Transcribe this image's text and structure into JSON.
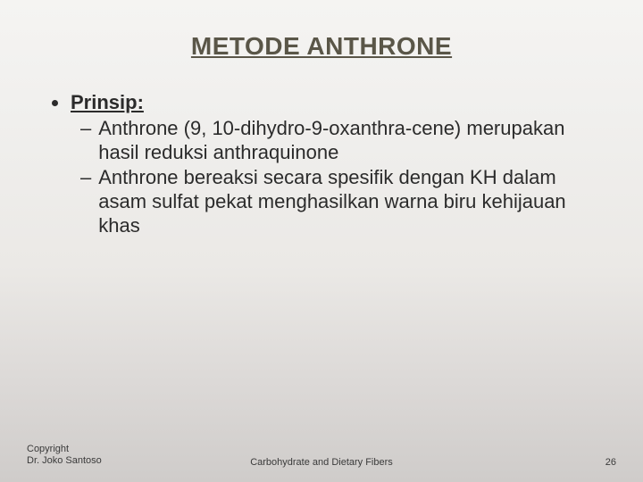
{
  "slide": {
    "title": "METODE ANTHRONE",
    "bullet_label": "Prinsip:",
    "subitems": [
      "Anthrone (9, 10-dihydro-9-oxanthra-cene) merupakan hasil reduksi anthraquinone",
      "Anthrone bereaksi secara spesifik dengan KH dalam asam sulfat pekat menghasilkan warna biru kehijauan khas"
    ]
  },
  "footer": {
    "copyright_line1": "Copyright",
    "copyright_line2": "Dr. Joko Santoso",
    "center": "Carbohydrate and Dietary Fibers",
    "page": "26"
  }
}
